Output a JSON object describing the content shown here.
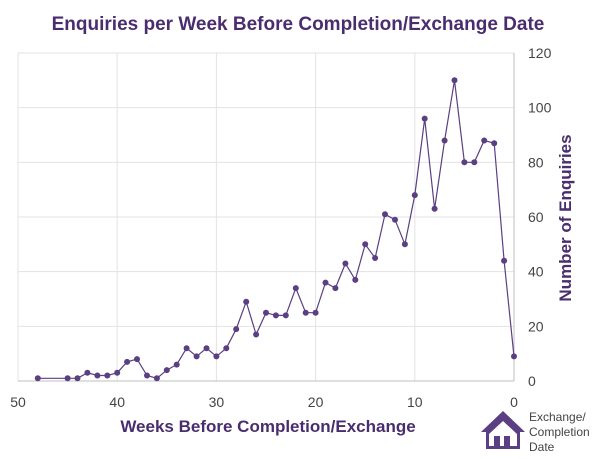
{
  "chart_data": {
    "type": "line",
    "title": "Enquiries per Week Before Completion/Exchange Date",
    "xlabel": "Weeks Before Completion/Exchange",
    "ylabel": "Number of Enquiries",
    "xlim": [
      50,
      0
    ],
    "ylim": [
      0,
      120
    ],
    "x_ticks": [
      "50",
      "40",
      "30",
      "20",
      "10",
      "0"
    ],
    "x_tick_values": [
      50,
      40,
      30,
      20,
      10,
      0
    ],
    "y_ticks": [
      "0",
      "20",
      "40",
      "60",
      "80",
      "100",
      "120"
    ],
    "y_tick_values": [
      0,
      20,
      40,
      60,
      80,
      100,
      120
    ],
    "y_axis_position": "right",
    "grid": true,
    "color": "#5a3f82",
    "x": [
      48,
      45,
      44,
      43,
      42,
      41,
      40,
      39,
      38,
      37,
      36,
      35,
      34,
      33,
      32,
      31,
      30,
      29,
      28,
      27,
      26,
      25,
      24,
      23,
      22,
      21,
      20,
      19,
      18,
      17,
      16,
      15,
      14,
      13,
      12,
      11,
      10,
      9,
      8,
      7,
      6,
      5,
      4,
      3,
      2,
      1,
      0
    ],
    "values": [
      1,
      1,
      1,
      3,
      2,
      2,
      3,
      7,
      8,
      2,
      1,
      4,
      6,
      12,
      9,
      12,
      9,
      12,
      19,
      29,
      17,
      25,
      24,
      24,
      34,
      25,
      25,
      36,
      34,
      43,
      37,
      50,
      45,
      61,
      59,
      50,
      68,
      96,
      63,
      88,
      110,
      80,
      80,
      88,
      87,
      44,
      9
    ],
    "annotation": {
      "icon": "house-icon",
      "line1": "Exchange/",
      "line2": "Completion",
      "line3": "Date"
    }
  }
}
